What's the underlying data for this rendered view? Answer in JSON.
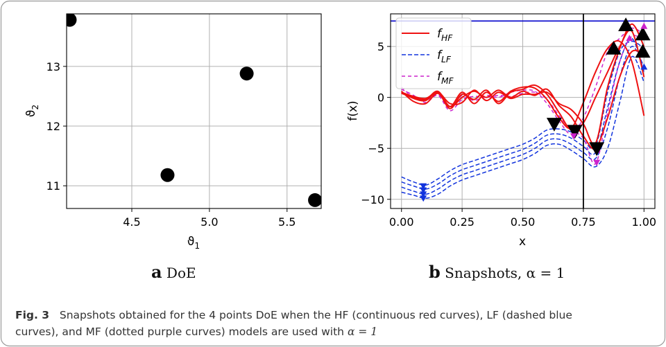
{
  "caption": {
    "label": "Fig. 3",
    "text_1": "Snapshots obtained for the 4 points DoE when the HF (continuous red curves), LF (dashed blue",
    "text_2": "curves), and MF (dotted purple curves) models are used with ",
    "math": "α = 1"
  },
  "subcaptions": {
    "a": {
      "letter": "a",
      "text": "DoE"
    },
    "b": {
      "letter": "b",
      "text": "Snapshots,  α = 1"
    }
  },
  "chart_data": [
    {
      "type": "scatter",
      "xlabel": "ϑ1",
      "ylabel": "ϑ2",
      "xlim": [
        4.08,
        5.72
      ],
      "ylim": [
        10.62,
        13.88
      ],
      "xticks": [
        4.5,
        5.0,
        5.5
      ],
      "xtick_labels": [
        "4.5",
        "5.0",
        "5.5"
      ],
      "yticks": [
        11,
        12,
        13
      ],
      "ytick_labels": [
        "11",
        "12",
        "13"
      ],
      "grid": true,
      "points": [
        {
          "x": 4.1,
          "y": 13.78
        },
        {
          "x": 5.24,
          "y": 12.88
        },
        {
          "x": 4.73,
          "y": 11.18
        },
        {
          "x": 5.68,
          "y": 10.76
        }
      ],
      "marker_color": "#000000"
    },
    {
      "type": "line",
      "xlabel": "x",
      "ylabel": "f(x)",
      "xlim": [
        -0.045,
        1.045
      ],
      "ylim": [
        -10.9,
        8.2
      ],
      "xticks": [
        0.0,
        0.25,
        0.5,
        0.75,
        1.0
      ],
      "xtick_labels": [
        "0.00",
        "0.25",
        "0.50",
        "0.75",
        "1.00"
      ],
      "yticks": [
        -10,
        -5,
        0,
        5
      ],
      "ytick_labels": [
        "−10",
        "−5",
        "0",
        "5"
      ],
      "grid": true,
      "legend": {
        "position": "top-left",
        "entries": [
          "f_HF",
          "f_LF",
          "f_MF"
        ]
      },
      "hline": {
        "y": 7.5,
        "color": "#0000cc"
      },
      "vline": {
        "x": 0.75,
        "color": "#000000"
      },
      "colors": {
        "HF": "#ee1111",
        "LF": "#1133dd",
        "MF": "#cc22cc"
      },
      "x": [
        0.0,
        0.05,
        0.1,
        0.15,
        0.2,
        0.25,
        0.3,
        0.35,
        0.4,
        0.45,
        0.5,
        0.55,
        0.6,
        0.65,
        0.7,
        0.75,
        0.8,
        0.85,
        0.9,
        0.95,
        1.0
      ],
      "series": [
        {
          "group": "HF",
          "values": [
            0.6,
            -0.4,
            -0.6,
            0.4,
            -0.9,
            0.5,
            -0.6,
            0.5,
            -0.4,
            0.6,
            1.0,
            0.9,
            -0.2,
            -2.0,
            -3.0,
            -0.5,
            2.5,
            4.8,
            5.5,
            3.5,
            -1.8
          ]
        },
        {
          "group": "HF",
          "values": [
            0.5,
            -0.1,
            -0.3,
            0.5,
            -1.1,
            0.3,
            -0.2,
            0.7,
            -0.6,
            0.5,
            0.8,
            1.2,
            0.3,
            -1.5,
            -3.2,
            -2.5,
            0.0,
            2.5,
            5.0,
            6.5,
            2.0
          ]
        },
        {
          "group": "HF",
          "values": [
            0.4,
            0.0,
            -0.2,
            0.6,
            -0.9,
            0.0,
            0.6,
            0.0,
            0.7,
            0.0,
            0.6,
            0.2,
            0.8,
            -0.8,
            -1.9,
            -3.8,
            -5.0,
            -2.0,
            2.0,
            4.5,
            4.2
          ]
        },
        {
          "group": "HF",
          "values": [
            0.5,
            0.1,
            -0.1,
            0.5,
            -0.6,
            -0.5,
            0.7,
            -0.3,
            0.5,
            -0.1,
            0.3,
            0.3,
            0.5,
            -0.6,
            -1.2,
            -2.6,
            -4.5,
            1.0,
            4.8,
            7.2,
            5.0
          ]
        },
        {
          "group": "LF",
          "values": [
            -7.8,
            -8.3,
            -8.6,
            -8.0,
            -7.2,
            -6.6,
            -6.2,
            -5.8,
            -5.4,
            -5.0,
            -4.6,
            -4.0,
            -3.2,
            -3.1,
            -3.4,
            -4.2,
            -4.8,
            0.5,
            4.5,
            5.5,
            4.8
          ]
        },
        {
          "group": "LF",
          "values": [
            -8.3,
            -8.7,
            -9.0,
            -8.5,
            -7.7,
            -7.1,
            -6.7,
            -6.3,
            -5.9,
            -5.5,
            -5.1,
            -4.5,
            -3.7,
            -3.6,
            -4.0,
            -4.8,
            -5.4,
            -1.0,
            3.5,
            5.8,
            2.5
          ]
        },
        {
          "group": "LF",
          "values": [
            -8.8,
            -9.2,
            -9.5,
            -9.0,
            -8.2,
            -7.6,
            -7.2,
            -6.8,
            -6.4,
            -6.0,
            -5.6,
            -5.0,
            -4.2,
            -4.1,
            -4.6,
            -5.4,
            -6.0,
            -3.0,
            2.0,
            5.0,
            3.0
          ]
        },
        {
          "group": "LF",
          "values": [
            -9.3,
            -9.6,
            -9.9,
            -9.5,
            -8.7,
            -8.1,
            -7.7,
            -7.3,
            -6.9,
            -6.5,
            -6.1,
            -5.5,
            -4.7,
            -4.6,
            -5.2,
            -6.0,
            -6.8,
            -5.0,
            -0.5,
            4.0,
            1.5
          ]
        },
        {
          "group": "MF",
          "values": [
            1.0,
            0.0,
            -0.3,
            0.3,
            -1.0,
            0.2,
            -0.3,
            0.2,
            0.0,
            0.5,
            0.7,
            0.6,
            -0.6,
            -2.3,
            -3.6,
            -2.0,
            1.0,
            4.5,
            5.8,
            6.8,
            6.2
          ]
        },
        {
          "group": "MF",
          "values": [
            0.8,
            0.2,
            -0.5,
            0.2,
            -1.3,
            -0.2,
            0.1,
            0.0,
            0.2,
            0.1,
            0.4,
            0.5,
            -0.2,
            -1.8,
            -3.2,
            -4.0,
            -6.5,
            -1.5,
            3.5,
            6.0,
            5.5
          ]
        }
      ],
      "triangles_up": [
        {
          "x": 0.875,
          "y": 4.8,
          "size": "large"
        },
        {
          "x": 0.925,
          "y": 7.1,
          "size": "large"
        },
        {
          "x": 0.995,
          "y": 6.2,
          "size": "large"
        },
        {
          "x": 0.995,
          "y": 4.5,
          "size": "large"
        },
        {
          "x": 0.94,
          "y": 5.8,
          "size": "small",
          "group": "MF"
        },
        {
          "x": 1.0,
          "y": 7.0,
          "size": "small",
          "group": "MF"
        },
        {
          "x": 1.0,
          "y": 3.0,
          "size": "small",
          "group": "LF"
        }
      ],
      "triangles_down": [
        {
          "x": 0.63,
          "y": -2.6,
          "size": "large"
        },
        {
          "x": 0.715,
          "y": -3.3,
          "size": "large"
        },
        {
          "x": 0.805,
          "y": -5.0,
          "size": "large"
        },
        {
          "x": 0.71,
          "y": -3.8,
          "size": "small",
          "group": "MF"
        },
        {
          "x": 0.805,
          "y": -6.4,
          "size": "small",
          "group": "MF"
        },
        {
          "x": 0.09,
          "y": -8.7,
          "size": "small",
          "group": "LF"
        },
        {
          "x": 0.09,
          "y": -9.1,
          "size": "small",
          "group": "LF"
        },
        {
          "x": 0.09,
          "y": -9.5,
          "size": "small",
          "group": "LF"
        },
        {
          "x": 0.09,
          "y": -9.9,
          "size": "small",
          "group": "LF"
        }
      ]
    }
  ]
}
